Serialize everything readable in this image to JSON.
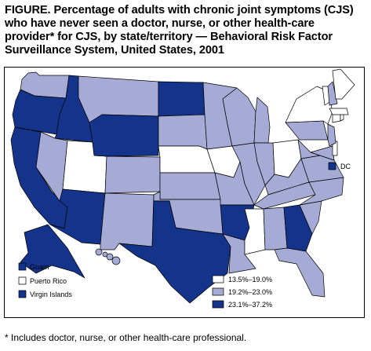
{
  "title": "FIGURE. Percentage of adults with chronic joint symptoms (CJS) who have never seen a doctor, nurse, or other health-care provider* for CJS, by state/territory — Behavioral Risk Factor Surveillance System, United States, 2001",
  "footnote": "* Includes doctor, nurse, or other health-care professional.",
  "colors": {
    "low": "#ffffff",
    "mid": "#a6abd6",
    "high": "#14338a",
    "outline": "#000000"
  },
  "classes": [
    {
      "id": "low",
      "label": "13.5%–19.0%"
    },
    {
      "id": "mid",
      "label": "19.2%–23.0%"
    },
    {
      "id": "high",
      "label": "23.1%–37.2%"
    }
  ],
  "territories": [
    {
      "name": "Guam",
      "class": "high"
    },
    {
      "name": "Puerto Rico",
      "class": "low"
    },
    {
      "name": "Virgin Islands",
      "class": "high"
    }
  ],
  "dc": {
    "label": "DC",
    "class": "high"
  },
  "states": {
    "WA": "mid",
    "OR": "high",
    "CA": "high",
    "ID": "high",
    "NV": "mid",
    "UT": "low",
    "AZ": "high",
    "MT": "mid",
    "WY": "high",
    "CO": "mid",
    "NM": "mid",
    "ND": "high",
    "SD": "mid",
    "NE": "low",
    "KS": "mid",
    "OK": "mid",
    "TX": "high",
    "MN": "mid",
    "IA": "low",
    "MO": "mid",
    "AR": "high",
    "LA": "mid",
    "WI": "mid",
    "IL": "mid",
    "MI": "mid",
    "IN": "mid",
    "OH": "low",
    "KY": "mid",
    "TN": "mid",
    "MS": "low",
    "AL": "mid",
    "GA": "high",
    "FL": "mid",
    "SC": "mid",
    "NC": "mid",
    "VA": "mid",
    "WV": "mid",
    "PA": "mid",
    "NY": "low",
    "MD": "mid",
    "DE": "low",
    "NJ": "mid",
    "CT": "low",
    "RI": "low",
    "MA": "low",
    "VT": "low",
    "NH": "mid",
    "ME": "low",
    "AK": "high",
    "HI": "mid"
  }
}
